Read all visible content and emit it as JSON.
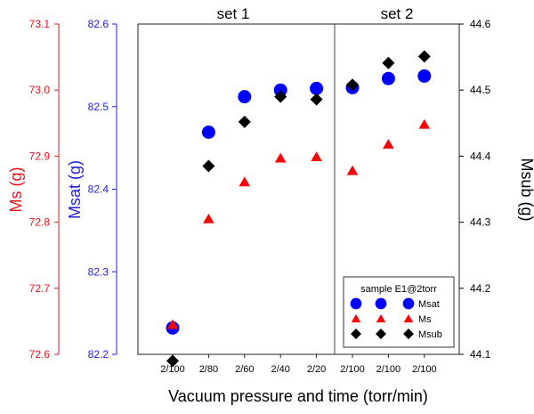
{
  "chart_data": {
    "type": "scatter",
    "categories": [
      "2/100",
      "2/80",
      "2/60",
      "2/40",
      "2/20",
      "2/100",
      "2/100",
      "2/100"
    ],
    "xlabel": "Vacuum pressure and time (torr/min)",
    "panels": [
      {
        "label": "set 1",
        "count": 5
      },
      {
        "label": "set 2",
        "count": 3
      }
    ],
    "axes": {
      "ms": {
        "label": "Ms (g)",
        "color": "#e8141b",
        "ylim": [
          72.6,
          73.1
        ],
        "ticks": [
          "72.6",
          "72.7",
          "72.8",
          "72.9",
          "73.0",
          "73.1"
        ]
      },
      "msat": {
        "label": "Msat (g)",
        "color": "#1f1fe0",
        "ylim": [
          82.2,
          82.6
        ],
        "ticks": [
          "82.2",
          "82.3",
          "82.4",
          "82.5",
          "82.6"
        ]
      },
      "msub": {
        "label": "Msub (g)",
        "color": "#000000",
        "ylim": [
          44.1,
          44.6
        ],
        "ticks": [
          "44.1",
          "44.2",
          "44.3",
          "44.4",
          "44.5",
          "44.6"
        ]
      }
    },
    "series": [
      {
        "name": "Msat",
        "axis": "msat",
        "marker": "circle",
        "color": "#0000ff",
        "values": [
          82.232,
          82.469,
          82.512,
          82.52,
          82.522,
          82.523,
          82.534,
          82.537
        ]
      },
      {
        "name": "Ms",
        "axis": "ms",
        "marker": "triangle",
        "color": "#ff0000",
        "values": [
          72.645,
          72.805,
          72.861,
          72.897,
          72.899,
          72.878,
          72.918,
          72.948
        ]
      },
      {
        "name": "Msub",
        "axis": "msub",
        "marker": "diamond",
        "color": "#000000",
        "values": [
          44.09,
          44.385,
          44.452,
          44.49,
          44.486,
          44.508,
          44.541,
          44.551
        ]
      }
    ],
    "legend": {
      "title": "sample E1@2torr",
      "placement": "bottom-right",
      "rows": [
        {
          "name": "Msat",
          "marker": "circle",
          "color": "#0000ff"
        },
        {
          "name": "Ms",
          "marker": "triangle",
          "color": "#ff0000"
        },
        {
          "name": "Msub",
          "marker": "diamond",
          "color": "#000000"
        }
      ]
    }
  }
}
